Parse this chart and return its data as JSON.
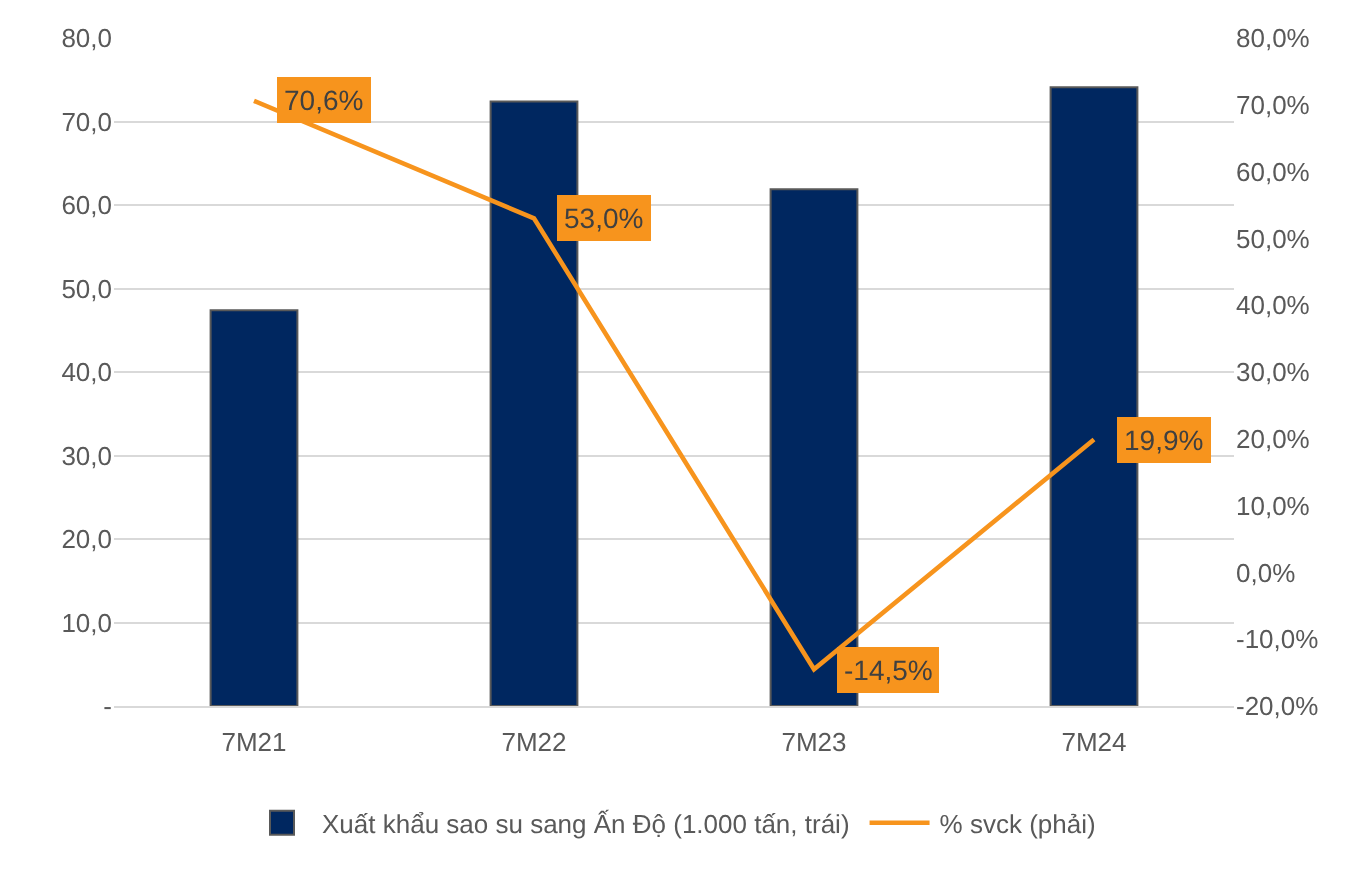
{
  "chart_data": {
    "type": "bar",
    "categories": [
      "7M21",
      "7M22",
      "7M23",
      "7M24"
    ],
    "series": [
      {
        "name": "Xuất khẩu sao su sang Ấn Độ (1.000 tấn, trái)",
        "color": "#002760",
        "values": [
          47.4,
          72.4,
          61.9,
          74.1
        ]
      },
      {
        "name": "% svck (phải)",
        "type": "line",
        "axis": "y2",
        "color": "#f7941d",
        "values": [
          70.6,
          53.0,
          -14.5,
          19.9
        ],
        "value_labels": [
          "70,6%",
          "53,0%",
          "-14,5%",
          "19,9%"
        ]
      }
    ],
    "ylim": [
      0,
      80
    ],
    "yticks": [
      {
        "value": 0,
        "label": "-"
      },
      {
        "value": 10,
        "label": "10,0"
      },
      {
        "value": 20,
        "label": "20,0"
      },
      {
        "value": 30,
        "label": "30,0"
      },
      {
        "value": 40,
        "label": "40,0"
      },
      {
        "value": 50,
        "label": "50,0"
      },
      {
        "value": 60,
        "label": "60,0"
      },
      {
        "value": 70,
        "label": "70,0"
      },
      {
        "value": 80,
        "label": "80,0"
      }
    ],
    "y2lim": [
      -20,
      80
    ],
    "y2ticks": [
      {
        "value": -20,
        "label": "-20,0%"
      },
      {
        "value": -10,
        "label": "-10,0%"
      },
      {
        "value": 0,
        "label": "0,0%"
      },
      {
        "value": 10,
        "label": "10,0%"
      },
      {
        "value": 20,
        "label": "20,0%"
      },
      {
        "value": 30,
        "label": "30,0%"
      },
      {
        "value": 40,
        "label": "40,0%"
      },
      {
        "value": 50,
        "label": "50,0%"
      },
      {
        "value": 60,
        "label": "60,0%"
      },
      {
        "value": 70,
        "label": "70,0%"
      },
      {
        "value": 80,
        "label": "80,0%"
      }
    ],
    "grid": "y",
    "legend": "bottom",
    "marker": "none",
    "line_style": "solid"
  }
}
